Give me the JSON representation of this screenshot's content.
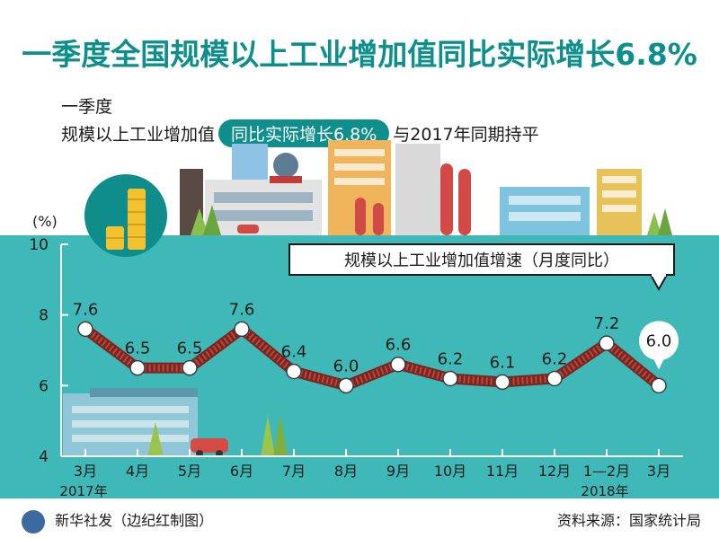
{
  "header": {
    "title": "一季度全国规模以上工业增加值同比实际增长6.8%",
    "sub_line1": "一季度",
    "sub_prefix": "规模以上工业增加值",
    "sub_highlight": "同比实际增长6.8%",
    "sub_suffix": "与2017年同期持平"
  },
  "footer": {
    "publisher": "新华社发（边纪红制图）",
    "source": "资料来源：国家统计局"
  },
  "colors": {
    "teal": "#3fb9b7",
    "title": "#0d8f8c",
    "line": "#8b2a22",
    "highlight_point": "#ffffff"
  },
  "chart_data": {
    "type": "line",
    "title": "规模以上工业增加值增速（月度同比）",
    "ylabel": "(%)",
    "xlabel": "",
    "ylim": [
      4,
      10
    ],
    "yticks": [
      4,
      6,
      8,
      10
    ],
    "categories": [
      "3月",
      "4月",
      "5月",
      "6月",
      "7月",
      "8月",
      "9月",
      "10月",
      "11月",
      "12月",
      "1—2月",
      "3月"
    ],
    "year_labels": [
      {
        "index": 0,
        "label": "2017年"
      },
      {
        "index": 10,
        "label": "2018年"
      }
    ],
    "values": [
      7.6,
      6.5,
      6.5,
      7.6,
      6.4,
      6.0,
      6.6,
      6.2,
      6.1,
      6.2,
      7.2,
      6.0
    ],
    "value_labels": [
      "7.6",
      "6.5",
      "6.5",
      "7.6",
      "6.4",
      "6.0",
      "6.6",
      "6.2",
      "6.1",
      "6.2",
      "7.2",
      "6.0"
    ],
    "highlight_index": 11
  }
}
